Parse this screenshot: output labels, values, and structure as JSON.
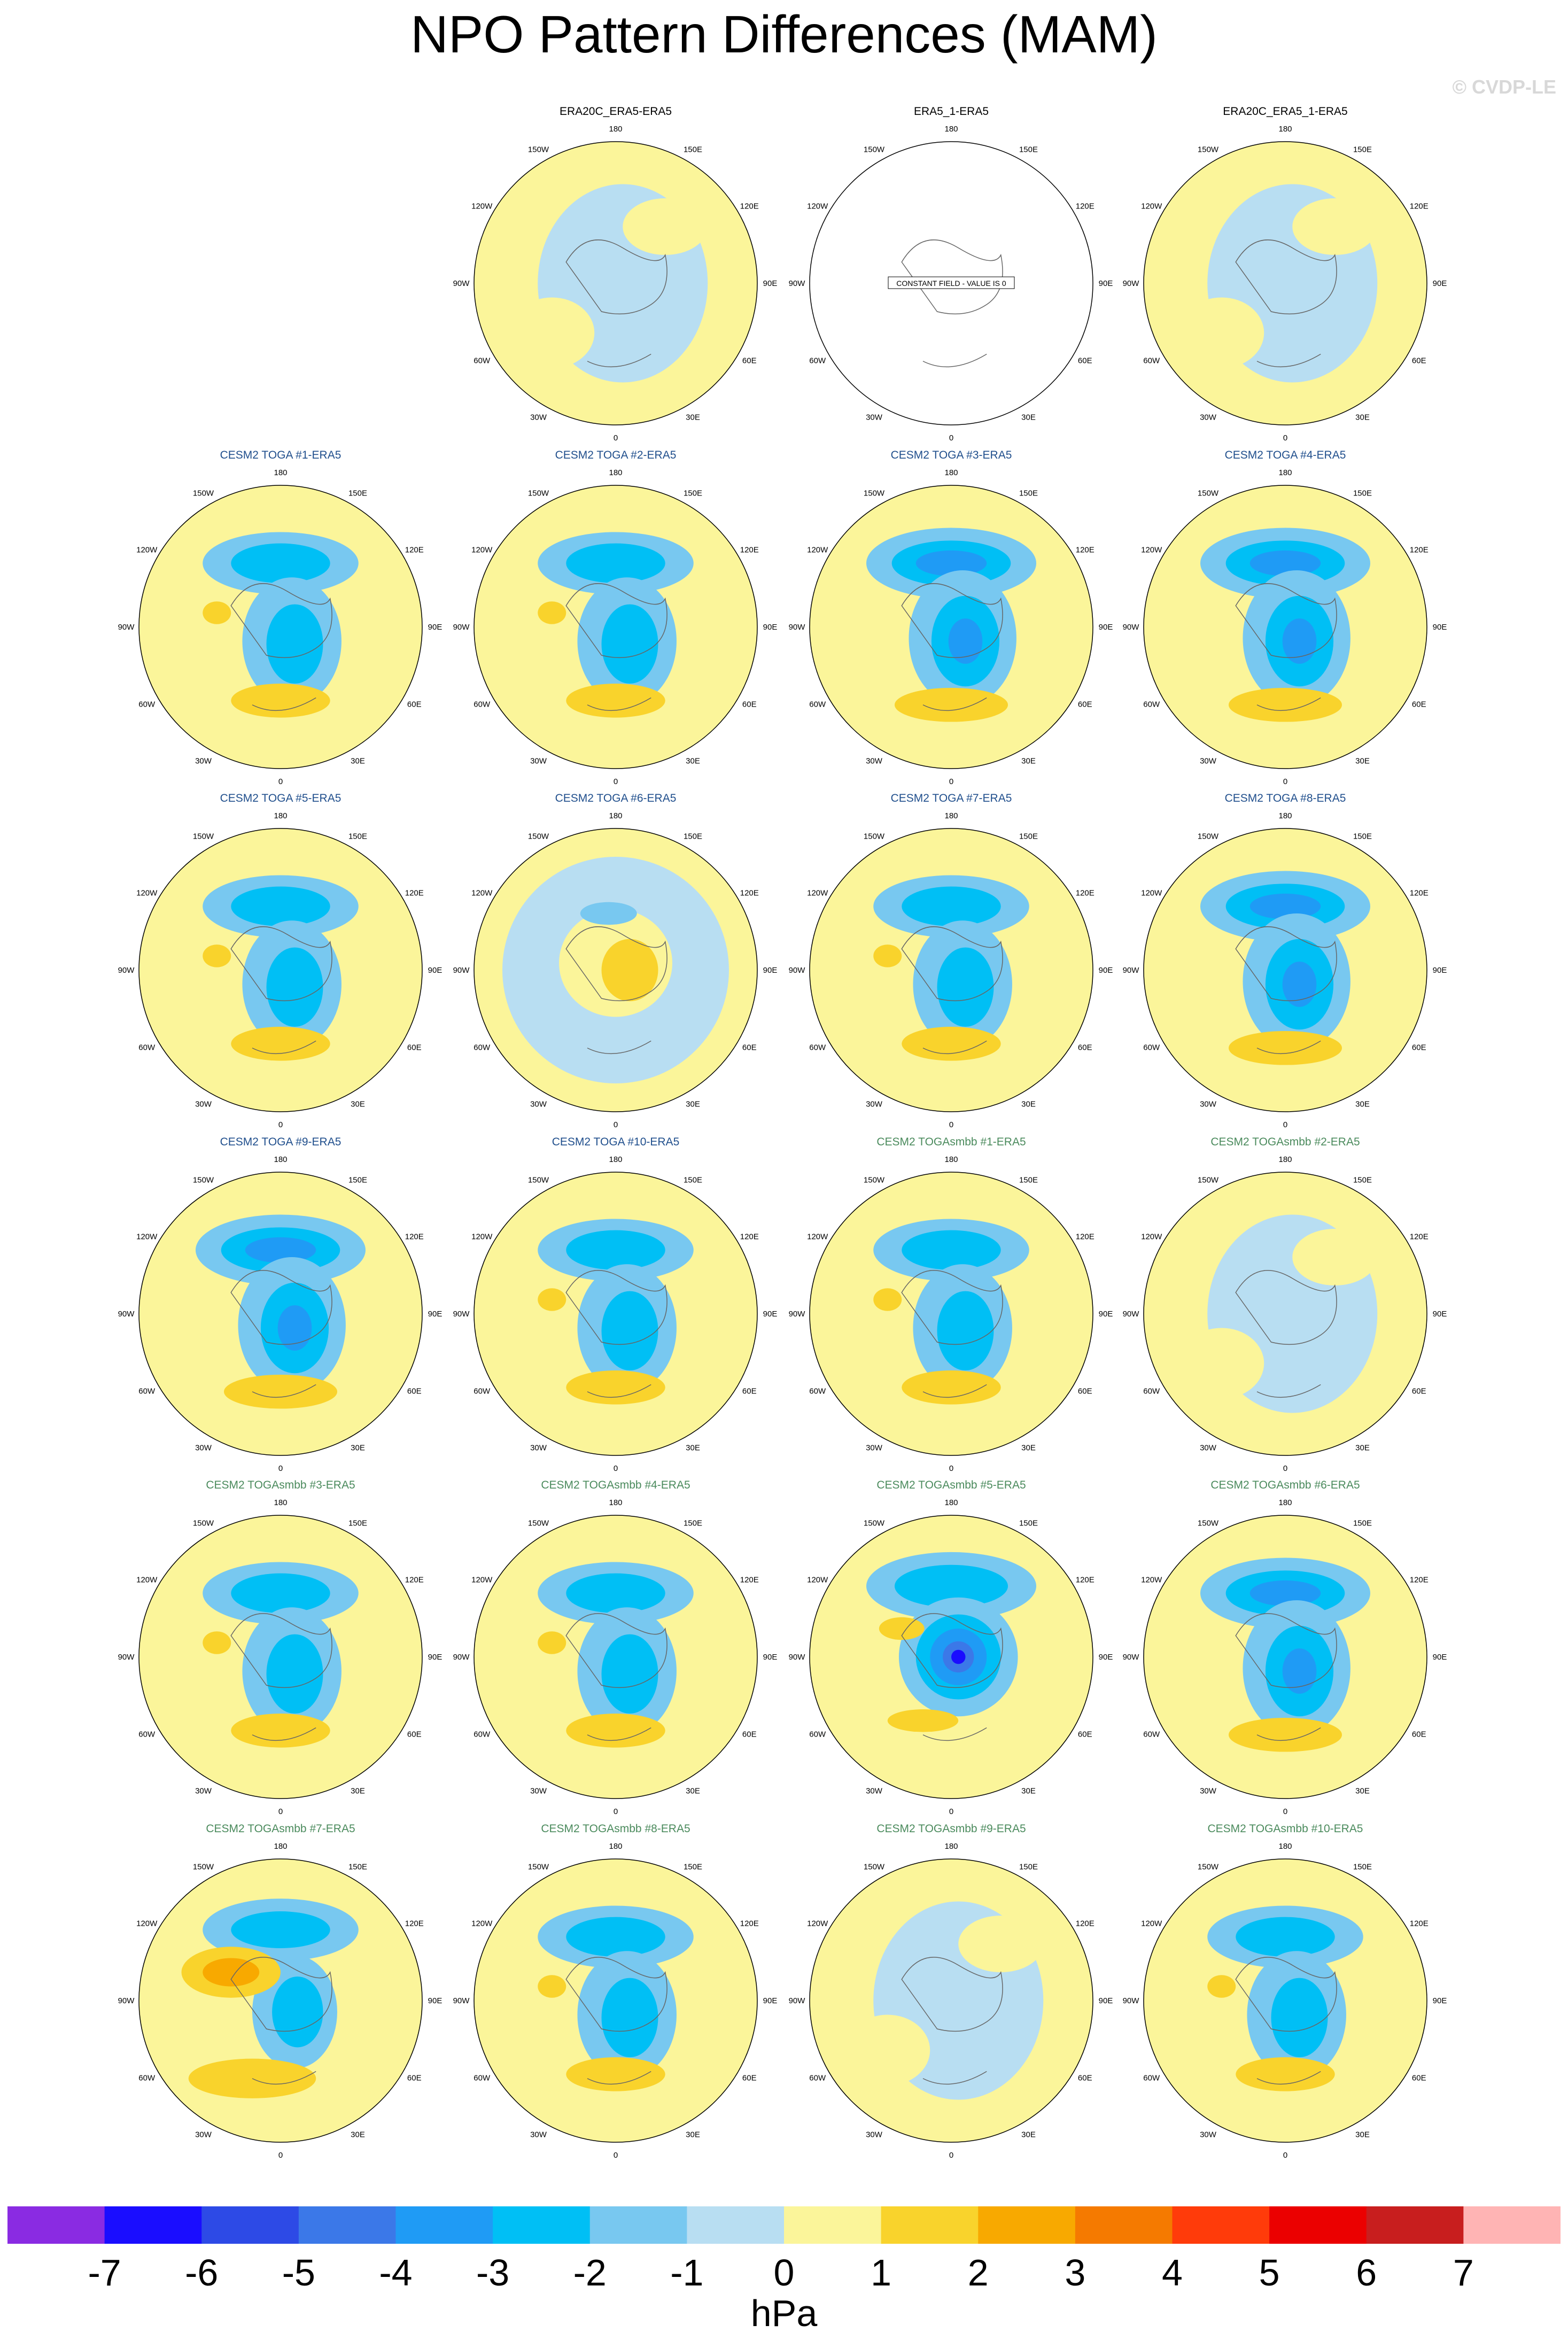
{
  "title": "NPO Pattern Differences (MAM)",
  "credit": "© CVDP-LE",
  "chart_data": {
    "type": "heatmap",
    "projection": "north-polar-stereographic",
    "lon_labels": [
      "180",
      "150E",
      "120E",
      "90E",
      "60E",
      "30E",
      "0",
      "30W",
      "60W",
      "90W",
      "120W",
      "150W"
    ],
    "constant_field_label": "CONSTANT FIELD - VALUE IS 0",
    "panels": [
      {
        "title": "ERA20C_ERA5-ERA5",
        "title_color": "#000000",
        "row": 0,
        "col": 1,
        "pattern": "weak",
        "constant": false
      },
      {
        "title": "ERA5_1-ERA5",
        "title_color": "#000000",
        "row": 0,
        "col": 2,
        "pattern": "none",
        "constant": true
      },
      {
        "title": "ERA20C_ERA5_1-ERA5",
        "title_color": "#000000",
        "row": 0,
        "col": 3,
        "pattern": "weak",
        "constant": false
      },
      {
        "title": "CESM2 TOGA #1-ERA5",
        "title_color": "#1f4e8c",
        "row": 1,
        "col": 0,
        "pattern": "medium",
        "constant": false
      },
      {
        "title": "CESM2 TOGA #2-ERA5",
        "title_color": "#1f4e8c",
        "row": 1,
        "col": 1,
        "pattern": "medium",
        "constant": false
      },
      {
        "title": "CESM2 TOGA #3-ERA5",
        "title_color": "#1f4e8c",
        "row": 1,
        "col": 2,
        "pattern": "strong",
        "constant": false
      },
      {
        "title": "CESM2 TOGA #4-ERA5",
        "title_color": "#1f4e8c",
        "row": 1,
        "col": 3,
        "pattern": "strong",
        "constant": false
      },
      {
        "title": "CESM2 TOGA #5-ERA5",
        "title_color": "#1f4e8c",
        "row": 2,
        "col": 0,
        "pattern": "medium",
        "constant": false
      },
      {
        "title": "CESM2 TOGA #6-ERA5",
        "title_color": "#1f4e8c",
        "row": 2,
        "col": 1,
        "pattern": "inverse",
        "constant": false
      },
      {
        "title": "CESM2 TOGA #7-ERA5",
        "title_color": "#1f4e8c",
        "row": 2,
        "col": 2,
        "pattern": "medium",
        "constant": false
      },
      {
        "title": "CESM2 TOGA #8-ERA5",
        "title_color": "#1f4e8c",
        "row": 2,
        "col": 3,
        "pattern": "strong",
        "constant": false
      },
      {
        "title": "CESM2 TOGA #9-ERA5",
        "title_color": "#1f4e8c",
        "row": 3,
        "col": 0,
        "pattern": "strong",
        "constant": false
      },
      {
        "title": "CESM2 TOGA #10-ERA5",
        "title_color": "#1f4e8c",
        "row": 3,
        "col": 1,
        "pattern": "medium",
        "constant": false
      },
      {
        "title": "CESM2 TOGAsmbb #1-ERA5",
        "title_color": "#4a8a5c",
        "row": 3,
        "col": 2,
        "pattern": "medium",
        "constant": false
      },
      {
        "title": "CESM2 TOGAsmbb #2-ERA5",
        "title_color": "#4a8a5c",
        "row": 3,
        "col": 3,
        "pattern": "weak",
        "constant": false
      },
      {
        "title": "CESM2 TOGAsmbb #3-ERA5",
        "title_color": "#4a8a5c",
        "row": 4,
        "col": 0,
        "pattern": "medium",
        "constant": false
      },
      {
        "title": "CESM2 TOGAsmbb #4-ERA5",
        "title_color": "#4a8a5c",
        "row": 4,
        "col": 1,
        "pattern": "medium",
        "constant": false
      },
      {
        "title": "CESM2 TOGAsmbb #5-ERA5",
        "title_color": "#4a8a5c",
        "row": 4,
        "col": 2,
        "pattern": "extreme",
        "constant": false
      },
      {
        "title": "CESM2 TOGAsmbb #6-ERA5",
        "title_color": "#4a8a5c",
        "row": 4,
        "col": 3,
        "pattern": "strong",
        "constant": false
      },
      {
        "title": "CESM2 TOGAsmbb #7-ERA5",
        "title_color": "#4a8a5c",
        "row": 5,
        "col": 0,
        "pattern": "warm",
        "constant": false
      },
      {
        "title": "CESM2 TOGAsmbb #8-ERA5",
        "title_color": "#4a8a5c",
        "row": 5,
        "col": 1,
        "pattern": "medium",
        "constant": false
      },
      {
        "title": "CESM2 TOGAsmbb #9-ERA5",
        "title_color": "#4a8a5c",
        "row": 5,
        "col": 2,
        "pattern": "weak",
        "constant": false
      },
      {
        "title": "CESM2 TOGAsmbb #10-ERA5",
        "title_color": "#4a8a5c",
        "row": 5,
        "col": 3,
        "pattern": "medium",
        "constant": false
      }
    ],
    "colorbar": {
      "levels": [
        -7,
        -6,
        -5,
        -4,
        -3,
        -2,
        -1,
        0,
        1,
        2,
        3,
        4,
        5,
        6,
        7
      ],
      "tick_labels": [
        "-7",
        "-6",
        "-5",
        "-4",
        "-3",
        "-2",
        "-1",
        "0",
        "1",
        "2",
        "3",
        "4",
        "5",
        "6",
        "7"
      ],
      "colors": [
        "#8a2be2",
        "#1a0dff",
        "#2d4ae6",
        "#3b78e8",
        "#1f9bf5",
        "#00bff5",
        "#78c8f0",
        "#b8def2",
        "#fbf59a",
        "#f9d32c",
        "#f8a900",
        "#f57a00",
        "#ff3b0a",
        "#eb0000",
        "#c81e1e",
        "#ffb4b4"
      ],
      "unit": "hPa"
    }
  }
}
